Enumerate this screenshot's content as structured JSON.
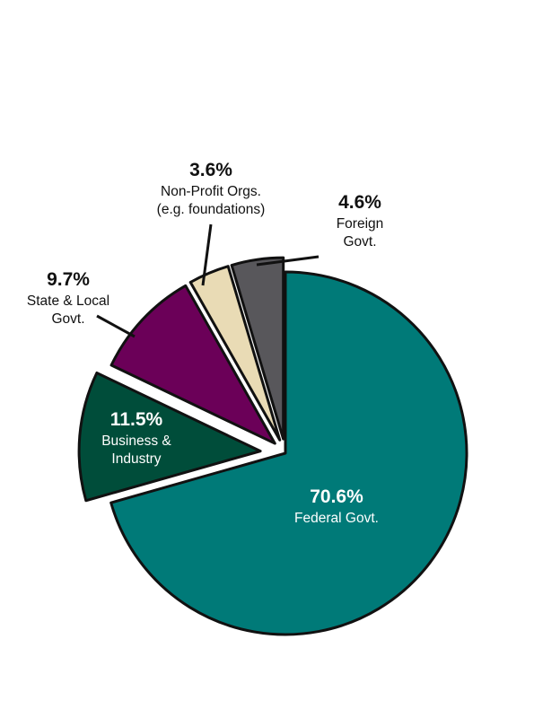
{
  "chart_data": {
    "type": "pie",
    "title": "",
    "slices": [
      {
        "name": "Federal Govt.",
        "value": 70.6,
        "pct_label": "70.6%",
        "label_lines": [
          "Federal Govt."
        ],
        "color": "#007a78",
        "label_color": "#ffffff"
      },
      {
        "name": "Business & Industry",
        "value": 11.5,
        "pct_label": "11.5%",
        "label_lines": [
          "Business &",
          "Industry"
        ],
        "color": "#004d3a",
        "label_color": "#ffffff"
      },
      {
        "name": "State & Local Govt.",
        "value": 9.7,
        "pct_label": "9.7%",
        "label_lines": [
          "State & Local",
          "Govt."
        ],
        "color": "#6b0058",
        "label_color": "#111111"
      },
      {
        "name": "Non-Profit Orgs. (e.g. foundations)",
        "value": 3.6,
        "pct_label": "3.6%",
        "label_lines": [
          "Non-Profit Orgs.",
          "(e.g. foundations)"
        ],
        "color": "#e9dbb5",
        "label_color": "#111111"
      },
      {
        "name": "Foreign Govt.",
        "value": 4.6,
        "pct_label": "4.6%",
        "label_lines": [
          "Foreign",
          "Govt."
        ],
        "color": "#58575b",
        "label_color": "#111111"
      }
    ],
    "legend": "none"
  }
}
